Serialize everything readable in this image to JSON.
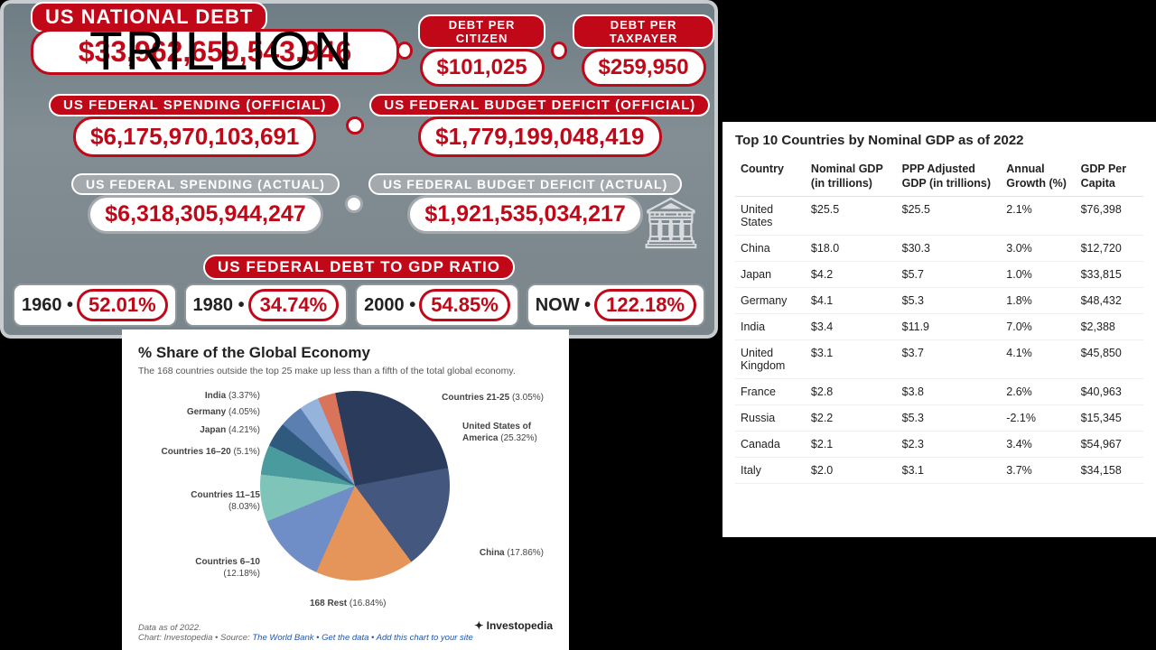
{
  "clock": {
    "overlay": "TRILLION",
    "national_debt": {
      "label": "US NATIONAL DEBT",
      "value": "$33,962,659,543,946"
    },
    "per_citizen": {
      "label": "DEBT PER CITIZEN",
      "value": "$101,025"
    },
    "per_taxpayer": {
      "label": "DEBT PER TAXPAYER",
      "value": "$259,950"
    },
    "spend_official": {
      "label": "US FEDERAL SPENDING (OFFICIAL)",
      "value": "$6,175,970,103,691"
    },
    "deficit_official": {
      "label": "US FEDERAL BUDGET DEFICIT (OFFICIAL)",
      "value": "$1,779,199,048,419"
    },
    "spend_actual": {
      "label": "US FEDERAL SPENDING (ACTUAL)",
      "value": "$6,318,305,944,247"
    },
    "deficit_actual": {
      "label": "US FEDERAL BUDGET DEFICIT (ACTUAL)",
      "value": "$1,921,535,034,217"
    },
    "ratio_label": "US FEDERAL DEBT TO GDP RATIO",
    "ratios": [
      {
        "year": "1960",
        "val": "52.01%"
      },
      {
        "year": "1980",
        "val": "34.74%"
      },
      {
        "year": "2000",
        "val": "54.85%"
      },
      {
        "year": "NOW",
        "val": "122.18%"
      }
    ]
  },
  "pie": {
    "title": "% Share of the Global Economy",
    "subtitle": "The 168 countries outside the top 25 make up less than a fifth of the total global economy.",
    "slices": [
      {
        "name": "United States of America",
        "pct": 25.32,
        "color": "#2b3b5c"
      },
      {
        "name": "China",
        "pct": 17.86,
        "color": "#43577f"
      },
      {
        "name": "168 Rest",
        "pct": 16.84,
        "color": "#e6955a"
      },
      {
        "name": "Countries 6–10",
        "pct": 12.18,
        "color": "#6f8dc6"
      },
      {
        "name": "Countries 11–15",
        "pct": 8.03,
        "color": "#7fc4b8"
      },
      {
        "name": "Countries 16–20",
        "pct": 5.1,
        "color": "#4a9b9e"
      },
      {
        "name": "Japan",
        "pct": 4.21,
        "color": "#2f5a7d"
      },
      {
        "name": "Germany",
        "pct": 4.05,
        "color": "#5b7fb0"
      },
      {
        "name": "India",
        "pct": 3.37,
        "color": "#96b3dc"
      },
      {
        "name": "Countries 21-25",
        "pct": 3.05,
        "color": "#d9735a"
      }
    ],
    "data_asof": "Data as of 2022.",
    "credit_prefix": "Chart: Investopedia • Source: ",
    "credit_links": "The World Bank • Get the data • Add this chart to your site",
    "brand": "Investopedia"
  },
  "gdp": {
    "title": "Top 10 Countries by Nominal GDP as of 2022",
    "columns": [
      "Country",
      "Nominal GDP (in trillions)",
      "PPP Adjusted GDP (in trillions)",
      "Annual Growth (%)",
      "GDP Per Capita"
    ],
    "rows": [
      [
        "United States",
        "$25.5",
        "$25.5",
        "2.1%",
        "$76,398"
      ],
      [
        "China",
        "$18.0",
        "$30.3",
        "3.0%",
        "$12,720"
      ],
      [
        "Japan",
        "$4.2",
        "$5.7",
        "1.0%",
        "$33,815"
      ],
      [
        "Germany",
        "$4.1",
        "$5.3",
        "1.8%",
        "$48,432"
      ],
      [
        "India",
        "$3.4",
        "$11.9",
        "7.0%",
        "$2,388"
      ],
      [
        "United Kingdom",
        "$3.1",
        "$3.7",
        "4.1%",
        "$45,850"
      ],
      [
        "France",
        "$2.8",
        "$3.8",
        "2.6%",
        "$40,963"
      ],
      [
        "Russia",
        "$2.2",
        "$5.3",
        "-2.1%",
        "$15,345"
      ],
      [
        "Canada",
        "$2.1",
        "$2.3",
        "3.4%",
        "$54,967"
      ],
      [
        "Italy",
        "$2.0",
        "$3.1",
        "3.7%",
        "$34,158"
      ]
    ]
  }
}
